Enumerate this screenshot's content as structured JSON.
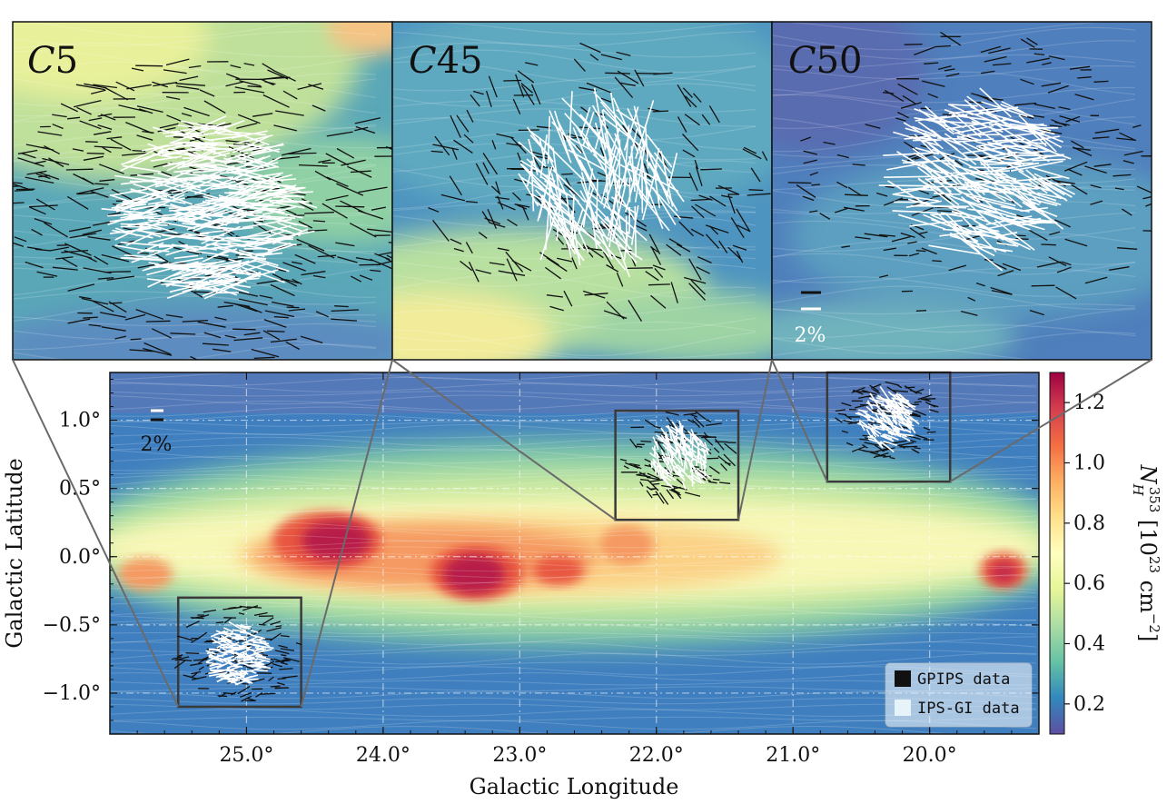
{
  "chart_data": {
    "type": "heatmap",
    "main": {
      "xlabel": "Galactic Longitude",
      "ylabel": "Galactic Latitude",
      "xlim": [
        26.0,
        19.2
      ],
      "ylim": [
        -1.3,
        1.35
      ],
      "xticks": [
        25.0,
        24.0,
        23.0,
        22.0,
        21.0,
        20.0
      ],
      "xtick_labels": [
        "25.0°",
        "24.0°",
        "23.0°",
        "22.0°",
        "21.0°",
        "20.0°"
      ],
      "yticks": [
        1.0,
        0.5,
        0.0,
        -0.5,
        -1.0
      ],
      "ytick_labels": [
        "1.0°",
        "0.5°",
        "0.0°",
        "−0.5°",
        "−1.0°"
      ],
      "grid": true,
      "scale_bar_label": "2%",
      "regions": [
        {
          "name": "C5",
          "l_range": [
            24.6,
            25.5
          ],
          "b_range": [
            -1.1,
            -0.3
          ]
        },
        {
          "name": "C45",
          "l_range": [
            21.4,
            22.3
          ],
          "b_range": [
            0.27,
            1.07
          ]
        },
        {
          "name": "C50",
          "l_range": [
            19.85,
            20.75
          ],
          "b_range": [
            0.55,
            1.35
          ]
        }
      ],
      "dense_peaks": [
        {
          "l": 24.3,
          "b": 0.1,
          "nh": 1.3
        },
        {
          "l": 23.35,
          "b": -0.15,
          "nh": 1.3
        },
        {
          "l": 22.7,
          "b": -0.1,
          "nh": 1.2
        },
        {
          "l": 19.5,
          "b": -0.1,
          "nh": 1.1
        }
      ]
    },
    "colorbar": {
      "label": "N_H^353 [10^23 cm^-2]",
      "label_main": "N",
      "label_sub": "H",
      "label_sup": "353",
      "label_unit_a": " [10",
      "label_unit_exp": "23",
      "label_unit_b": " cm",
      "label_unit_exp2": "−2",
      "label_unit_c": "]",
      "vmin": 0.1,
      "vmax": 1.3,
      "ticks": [
        0.2,
        0.4,
        0.6,
        0.8,
        1.0,
        1.2
      ],
      "tick_labels": [
        "0.2",
        "0.4",
        "0.6",
        "0.8",
        "1.0",
        "1.2"
      ]
    },
    "insets": [
      {
        "label": "C5",
        "label_prefix": "C",
        "label_number": "5"
      },
      {
        "label": "C45",
        "label_prefix": "C",
        "label_number": "45"
      },
      {
        "label": "C50",
        "label_prefix": "C",
        "label_number": "50",
        "scale_bar_label": "2%"
      }
    ],
    "legend": {
      "position": "bottom-right",
      "entries": [
        {
          "label": "GPIPS data",
          "color": "#111111"
        },
        {
          "label": "IPS-GI data",
          "color": "#e6f3f8"
        }
      ]
    }
  },
  "colors": {
    "gpips": "#111111",
    "ipsgi": "#ffffff",
    "box": "#3a3a3a",
    "connector": "#6a6a6a"
  }
}
